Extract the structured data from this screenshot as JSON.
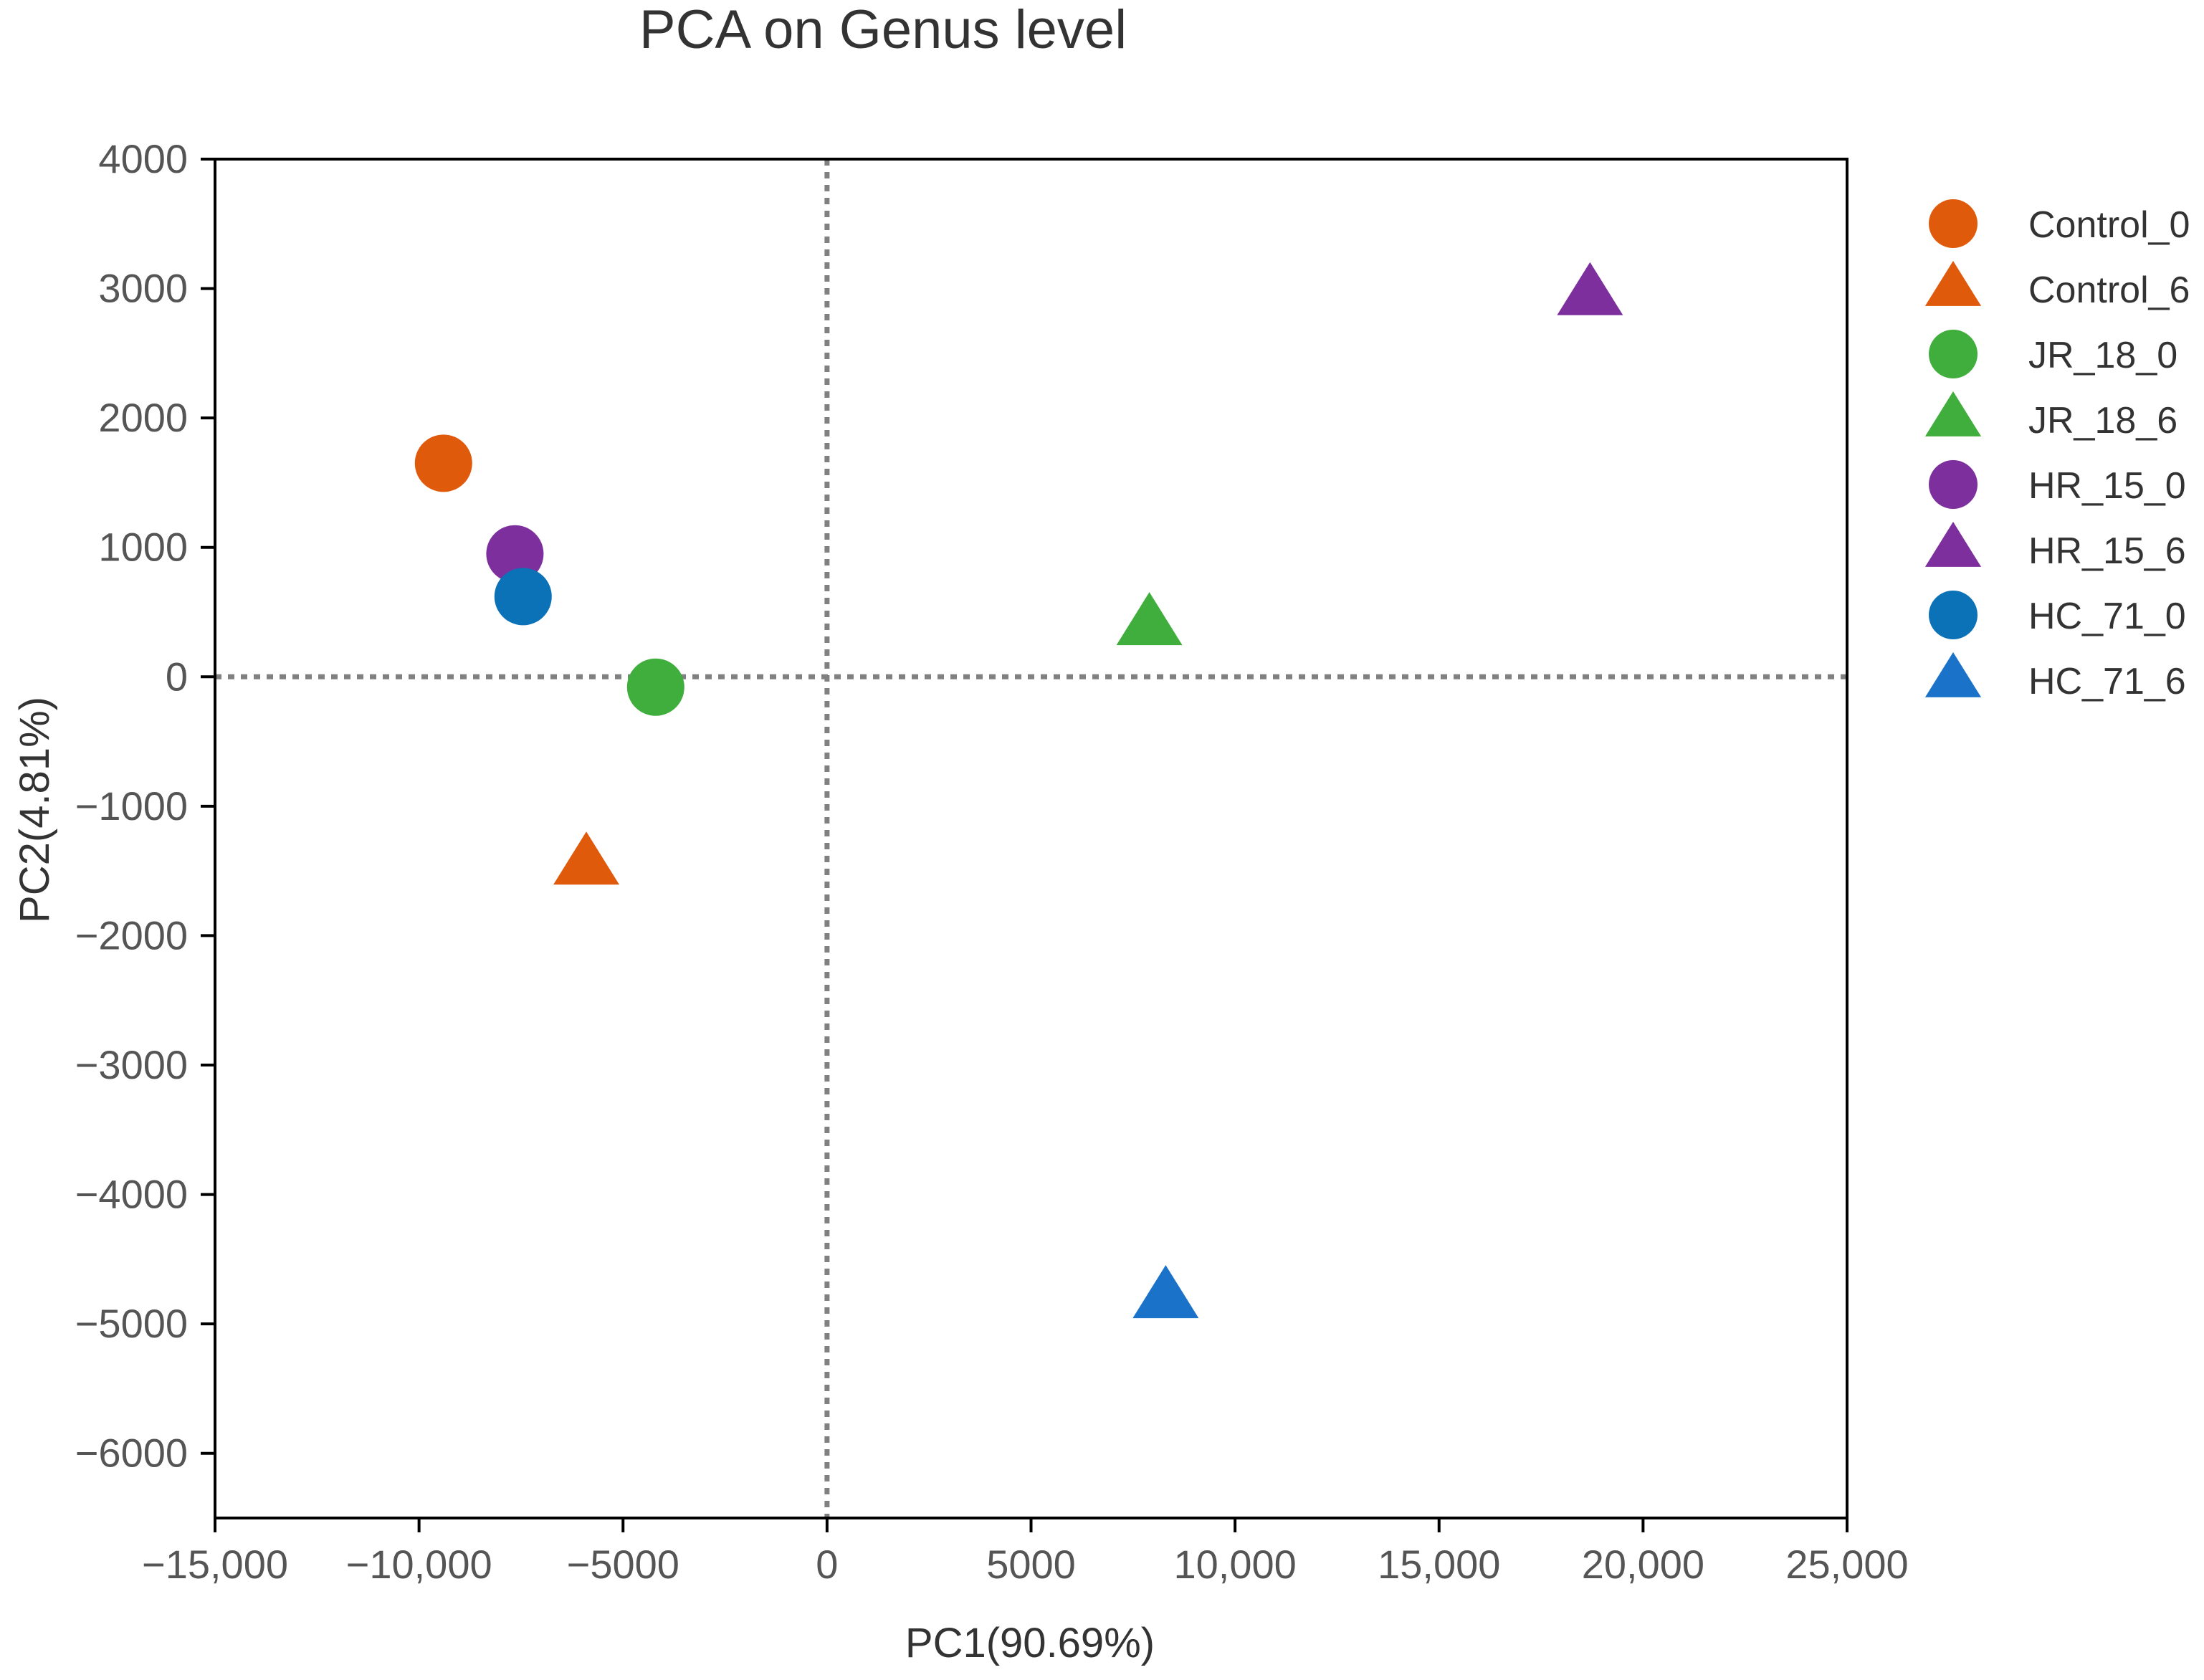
{
  "chart_data": {
    "type": "scatter",
    "title": "PCA on Genus level",
    "xlabel": "PC1(90.69%)",
    "ylabel": "PC2(4.81%)",
    "xlim": [
      -15000,
      25000
    ],
    "ylim": [
      -6500,
      4000
    ],
    "xticks": [
      {
        "value": -15000,
        "label": "−15,000"
      },
      {
        "value": -10000,
        "label": "−10,000"
      },
      {
        "value": -5000,
        "label": "−5000"
      },
      {
        "value": 0,
        "label": "0"
      },
      {
        "value": 5000,
        "label": "5000"
      },
      {
        "value": 10000,
        "label": "10,000"
      },
      {
        "value": 15000,
        "label": "15,000"
      },
      {
        "value": 20000,
        "label": "20,000"
      },
      {
        "value": 25000,
        "label": "25,000"
      }
    ],
    "yticks": [
      {
        "value": 4000,
        "label": "4000"
      },
      {
        "value": 3000,
        "label": "3000"
      },
      {
        "value": 2000,
        "label": "2000"
      },
      {
        "value": 1000,
        "label": "1000"
      },
      {
        "value": 0,
        "label": "0"
      },
      {
        "value": -1000,
        "label": "−1000"
      },
      {
        "value": -2000,
        "label": "−2000"
      },
      {
        "value": -3000,
        "label": "−3000"
      },
      {
        "value": -4000,
        "label": "−4000"
      },
      {
        "value": -5000,
        "label": "−5000"
      },
      {
        "value": -6000,
        "label": "−6000"
      }
    ],
    "reference_lines": {
      "x": 0,
      "y": 0,
      "style": "dotted",
      "color": "#808080"
    },
    "legend_position": "right",
    "series": [
      {
        "name": "Control_0",
        "marker": "circle",
        "color": "#E05A0C",
        "x": -9400,
        "y": 1650
      },
      {
        "name": "Control_6",
        "marker": "triangle",
        "color": "#E05A0C",
        "x": -5900,
        "y": -1450
      },
      {
        "name": "JR_18_0",
        "marker": "circle",
        "color": "#3FAE3C",
        "x": -4200,
        "y": -80
      },
      {
        "name": "JR_18_6",
        "marker": "triangle",
        "color": "#3FAE3C",
        "x": 7900,
        "y": 400
      },
      {
        "name": "HR_15_0",
        "marker": "circle",
        "color": "#7E2F9E",
        "x": -7650,
        "y": 950
      },
      {
        "name": "HR_15_6",
        "marker": "triangle",
        "color": "#7E2F9E",
        "x": 18700,
        "y": 2950
      },
      {
        "name": "HC_71_0",
        "marker": "circle",
        "color": "#0C72B8",
        "x": -7450,
        "y": 620
      },
      {
        "name": "HC_71_6",
        "marker": "triangle",
        "color": "#1A73C9",
        "x": 8300,
        "y": -4800
      }
    ]
  }
}
